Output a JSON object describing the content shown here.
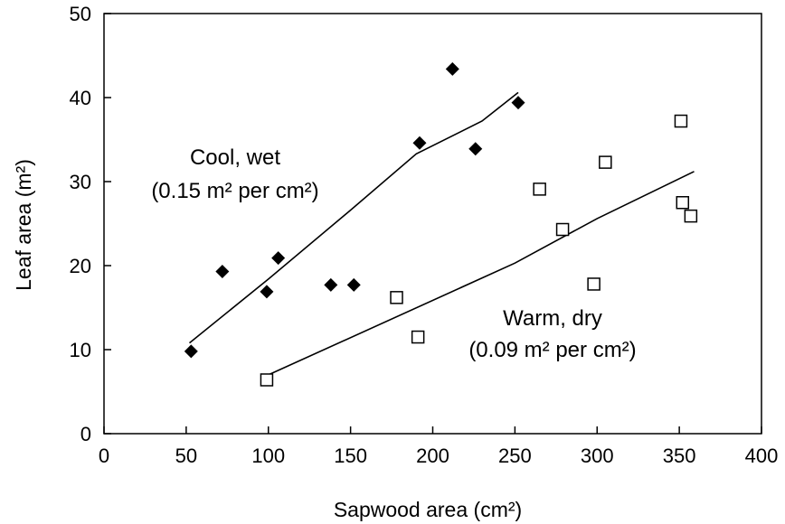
{
  "chart_data": {
    "type": "scatter",
    "title": "",
    "xlabel": "Sapwood area (cm²)",
    "ylabel": "Leaf area (m²)",
    "xlim": [
      0,
      400
    ],
    "ylim": [
      0,
      50
    ],
    "xticks": [
      0,
      50,
      100,
      150,
      200,
      250,
      300,
      350,
      400
    ],
    "yticks": [
      0,
      10,
      20,
      30,
      40,
      50
    ],
    "grid": false,
    "legend": "none",
    "series": [
      {
        "marker": "filled-diamond",
        "color": "#000000",
        "points": [
          {
            "x": 53,
            "y": 9.8
          },
          {
            "x": 72,
            "y": 19.3
          },
          {
            "x": 99,
            "y": 16.9
          },
          {
            "x": 106,
            "y": 20.9
          },
          {
            "x": 138,
            "y": 17.7
          },
          {
            "x": 152,
            "y": 17.7
          },
          {
            "x": 192,
            "y": 34.6
          },
          {
            "x": 212,
            "y": 43.4
          },
          {
            "x": 226,
            "y": 33.9
          },
          {
            "x": 252,
            "y": 39.4
          }
        ],
        "trendline": [
          {
            "x": 52,
            "y": 10.8
          },
          {
            "x": 100,
            "y": 18.4
          },
          {
            "x": 150,
            "y": 26.6
          },
          {
            "x": 190,
            "y": 33.3
          },
          {
            "x": 230,
            "y": 37.2
          },
          {
            "x": 252,
            "y": 40.6
          }
        ],
        "label_line1": "Cool, wet",
        "label_line2": "(0.15 m² per cm²)"
      },
      {
        "marker": "open-square",
        "color": "#000000",
        "points": [
          {
            "x": 99,
            "y": 6.4
          },
          {
            "x": 178,
            "y": 16.2
          },
          {
            "x": 191,
            "y": 11.5
          },
          {
            "x": 265,
            "y": 29.1
          },
          {
            "x": 279,
            "y": 24.3
          },
          {
            "x": 298,
            "y": 17.8
          },
          {
            "x": 305,
            "y": 32.3
          },
          {
            "x": 351,
            "y": 37.2
          },
          {
            "x": 352,
            "y": 27.5
          },
          {
            "x": 357,
            "y": 25.9
          }
        ],
        "trendline": [
          {
            "x": 100,
            "y": 7.0
          },
          {
            "x": 250,
            "y": 20.3
          },
          {
            "x": 300,
            "y": 25.6
          },
          {
            "x": 359,
            "y": 31.2
          }
        ],
        "label_line1": "Warm, dry",
        "label_line2": "(0.09 m² per cm²)"
      }
    ]
  }
}
